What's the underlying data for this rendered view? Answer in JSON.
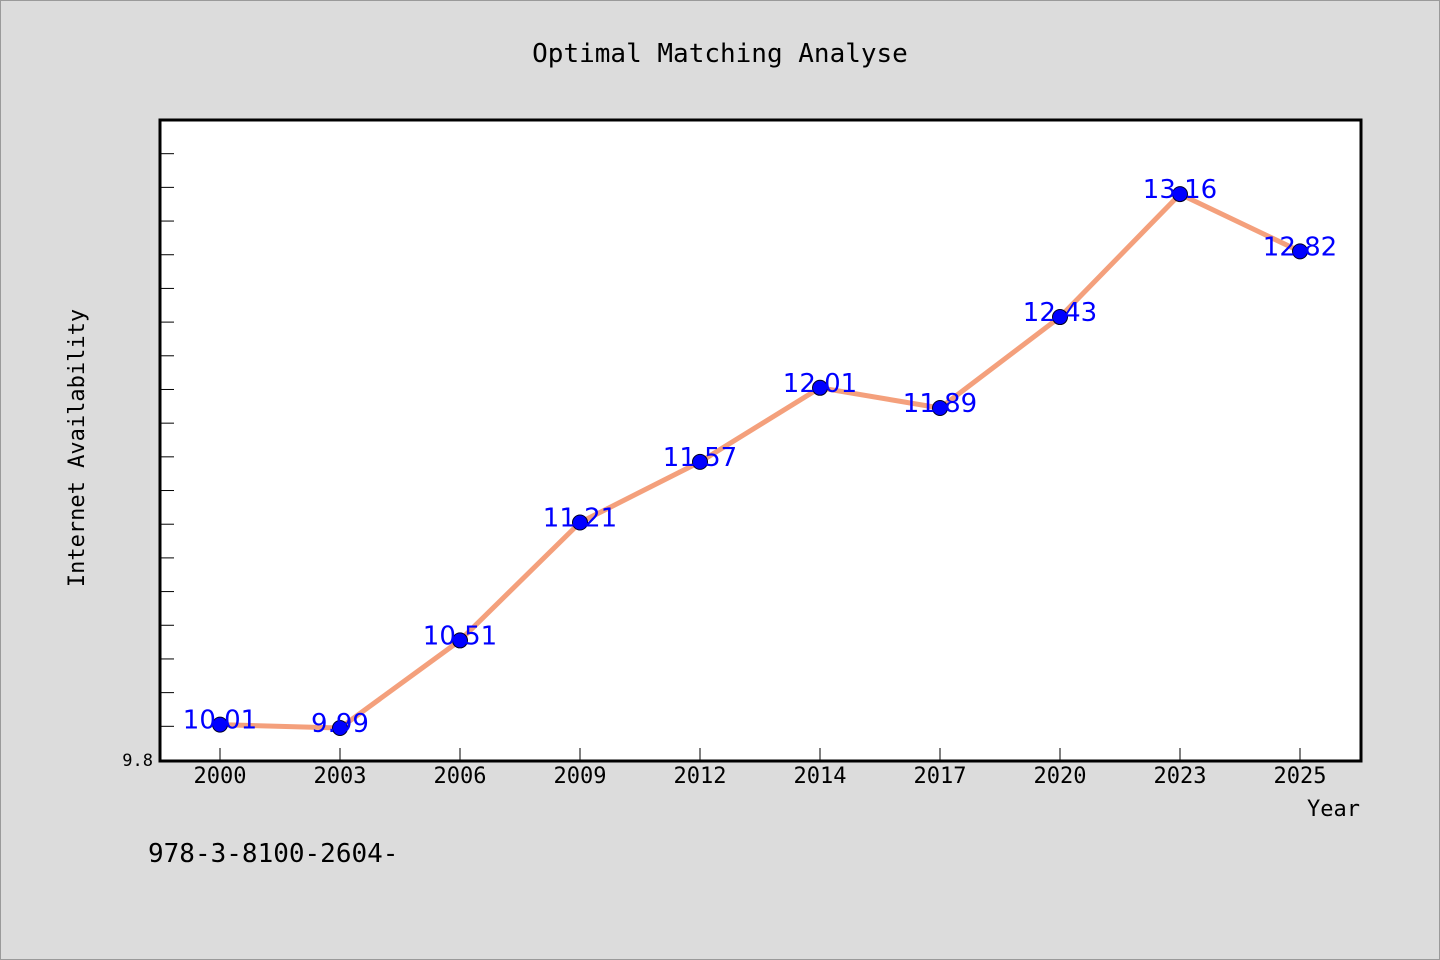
{
  "chart_data": {
    "type": "line",
    "title": "Optimal Matching Analyse",
    "xlabel": "Year",
    "ylabel": "Internet Availability",
    "categories": [
      "2000",
      "2003",
      "2006",
      "2009",
      "2012",
      "2014",
      "2017",
      "2020",
      "2023",
      "2025"
    ],
    "values": [
      10.01,
      9.99,
      10.51,
      11.21,
      11.57,
      12.01,
      11.89,
      12.43,
      13.16,
      12.82
    ],
    "data_labels": [
      "10.01",
      "9.99",
      "10.51",
      "11.21",
      "11.57",
      "12.01",
      "11.89",
      "12.43",
      "13.16",
      "12.82"
    ],
    "ylim": [
      9.8,
      13.6
    ],
    "y_tick_labels": [
      "9.8"
    ],
    "grid": false,
    "line_color": "#f4a07c",
    "marker_color": "#0000ff",
    "label_color": "#0000ff",
    "footer_text": "978-3-8100-2604-"
  }
}
